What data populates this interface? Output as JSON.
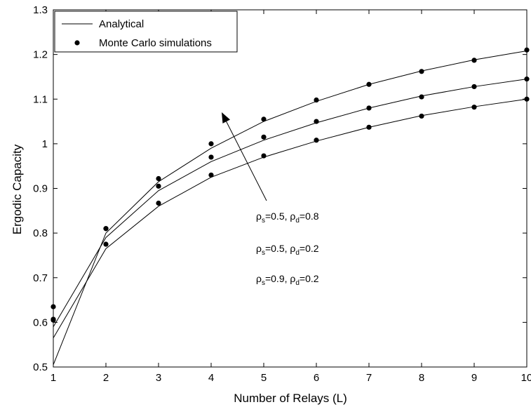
{
  "chart_data": {
    "type": "line",
    "xlabel": "Number of Relays (L)",
    "ylabel": "Ergodic Capacity",
    "xlim": [
      1,
      10
    ],
    "ylim": [
      0.5,
      1.3
    ],
    "x_ticks": [
      1,
      2,
      3,
      4,
      5,
      6,
      7,
      8,
      9,
      10
    ],
    "y_ticks": [
      0.5,
      0.6,
      0.7,
      0.8,
      0.9,
      1,
      1.1,
      1.2,
      1.3
    ],
    "y_tick_labels": [
      "0.5",
      "0.6",
      "0.7",
      "0.8",
      "0.9",
      "1",
      "1.1",
      "1.2",
      "1.3"
    ],
    "grid": false,
    "legend": {
      "position": "top-left",
      "entries": [
        "Analytical",
        "Monte Carlo simulations"
      ]
    },
    "x": [
      1,
      2,
      3,
      4,
      5,
      6,
      7,
      8,
      9,
      10
    ],
    "series": [
      {
        "label_parts": [
          "ρ",
          "s",
          "=0.5, ",
          "ρ",
          "d",
          "=0.8"
        ],
        "analytical": [
          0.505,
          0.8,
          0.915,
          0.99,
          1.05,
          1.095,
          1.133,
          1.163,
          1.188,
          1.208
        ],
        "simulation": [
          0.605,
          0.81,
          0.922,
          1.0,
          1.055,
          1.098,
          1.133,
          1.162,
          1.187,
          1.21
        ]
      },
      {
        "label_parts": [
          "ρ",
          "s",
          "=0.5, ",
          "ρ",
          "d",
          "=0.2"
        ],
        "analytical": [
          0.59,
          0.79,
          0.895,
          0.96,
          1.008,
          1.047,
          1.08,
          1.107,
          1.128,
          1.145
        ],
        "simulation": [
          0.635,
          0.81,
          0.905,
          0.97,
          1.015,
          1.05,
          1.08,
          1.105,
          1.128,
          1.145
        ]
      },
      {
        "label_parts": [
          "ρ",
          "s",
          "=0.9, ",
          "ρ",
          "d",
          "=0.2"
        ],
        "analytical": [
          0.565,
          0.765,
          0.86,
          0.925,
          0.97,
          1.006,
          1.037,
          1.063,
          1.083,
          1.1
        ],
        "simulation": [
          0.607,
          0.775,
          0.867,
          0.93,
          0.973,
          1.008,
          1.037,
          1.062,
          1.082,
          1.1
        ]
      }
    ],
    "annotation": {
      "arrow_direction": "up-left"
    }
  }
}
